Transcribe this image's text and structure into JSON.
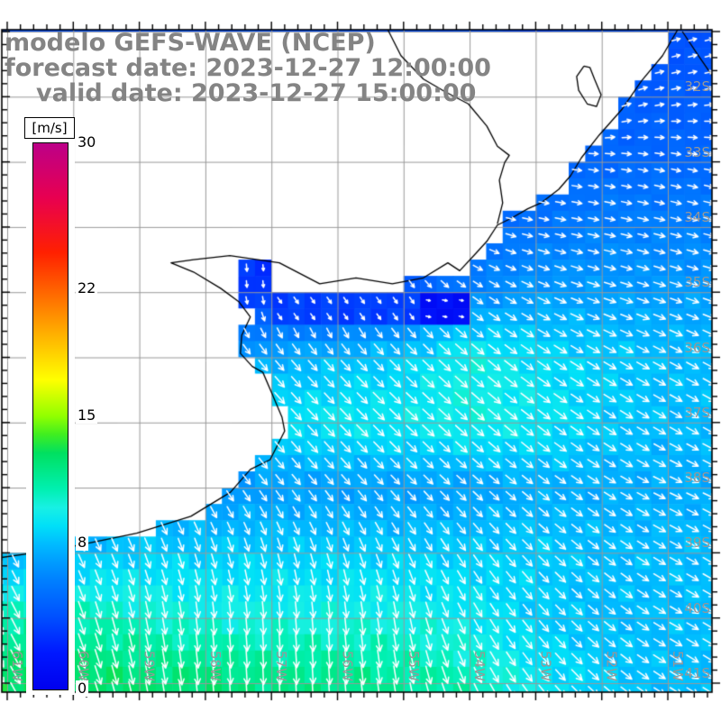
{
  "title": {
    "line1": "modelo GEFS-WAVE (NCEP)",
    "line2": "forecast date: 2023-12-27 12:00:00",
    "line3": "valid date: 2023-12-27 15:00:00"
  },
  "colorbar": {
    "unit_label": "[m/s]",
    "min": 0,
    "max": 30,
    "tick_labels": [
      "30",
      "22",
      "15",
      "8",
      "0"
    ],
    "tick_values": [
      30,
      22,
      15,
      8,
      0
    ],
    "stops": [
      [
        0,
        "#0000EE"
      ],
      [
        2,
        "#0018FF"
      ],
      [
        4,
        "#0050FF"
      ],
      [
        6,
        "#0080FF"
      ],
      [
        7,
        "#009CFF"
      ],
      [
        8,
        "#00BCFF"
      ],
      [
        9,
        "#00E0F8"
      ],
      [
        10,
        "#18F0E4"
      ],
      [
        11,
        "#00F0B0"
      ],
      [
        12,
        "#00E888"
      ],
      [
        13,
        "#00E060"
      ],
      [
        14,
        "#40EE20"
      ],
      [
        15,
        "#90FF00"
      ],
      [
        17,
        "#FFFF00"
      ],
      [
        20,
        "#FFA000"
      ],
      [
        24,
        "#FF2000"
      ],
      [
        27,
        "#E80050"
      ],
      [
        30,
        "#BC0088"
      ]
    ]
  },
  "axes": {
    "lat_labels": [
      "32S",
      "33S",
      "34S",
      "35S",
      "36S",
      "37S",
      "38S",
      "39S",
      "40S",
      "41S"
    ],
    "lat_values": [
      32,
      33,
      34,
      35,
      36,
      37,
      38,
      39,
      40,
      41
    ],
    "lon_labels": [
      "61W",
      "60W",
      "59W",
      "58W",
      "57W",
      "56W",
      "55W",
      "54W",
      "53W",
      "52W",
      "51W"
    ],
    "lon_values": [
      61,
      60,
      59,
      58,
      57,
      56,
      55,
      54,
      53,
      52,
      51
    ],
    "lat_range": [
      31,
      41
    ],
    "lon_range": [
      61,
      51
    ],
    "minor_ticks_per_degree": 5,
    "grid_color": "#999999",
    "frame_color": "#000000",
    "label_color": "#979797"
  },
  "wind_field": {
    "type": "vector-grid",
    "units": "m/s",
    "cell_deg": 0.25,
    "lat_nodes": [
      31,
      32,
      33,
      34,
      35,
      36,
      37,
      38,
      39,
      40,
      41
    ],
    "lon_nodes": [
      61,
      60,
      59,
      58,
      57,
      56,
      55,
      54,
      53,
      52,
      51
    ],
    "speed": [
      [
        4,
        4,
        4,
        4,
        4,
        4,
        4,
        4,
        3.5,
        4,
        4
      ],
      [
        4.5,
        4.5,
        4.5,
        4.5,
        4.5,
        4.5,
        4.5,
        4.5,
        4,
        4.5,
        4.5
      ],
      [
        5,
        5,
        5,
        5,
        5,
        5,
        5,
        4.5,
        4.5,
        5,
        5
      ],
      [
        5,
        5,
        5,
        5,
        5,
        5,
        4.5,
        5,
        5.5,
        6,
        6
      ],
      [
        5,
        5,
        4,
        3,
        3,
        3,
        4,
        6,
        7,
        7,
        7
      ],
      [
        6,
        6,
        6.5,
        7,
        7.5,
        8,
        8.5,
        10,
        9,
        8.5,
        8
      ],
      [
        7.5,
        7.5,
        8,
        8.5,
        9,
        9.5,
        9.5,
        10,
        9.5,
        8.5,
        8
      ],
      [
        6.5,
        6.5,
        6.5,
        6.5,
        7,
        7,
        7,
        7,
        7.5,
        7.5,
        7.5
      ],
      [
        7.5,
        8,
        8.5,
        8.5,
        8.5,
        8.5,
        8.5,
        8.5,
        8.5,
        8,
        8
      ],
      [
        11,
        11,
        10.5,
        10,
        10,
        10,
        10,
        9.5,
        8.5,
        8,
        8
      ],
      [
        13,
        13,
        12.5,
        12.5,
        12,
        12,
        11.5,
        11,
        9.5,
        8.5,
        8
      ]
    ],
    "dir_deg_screen": [
      [
        0,
        0,
        0,
        0,
        0,
        0,
        0,
        -10,
        -25,
        -25,
        -15
      ],
      [
        0,
        0,
        0,
        0,
        0,
        0,
        0,
        0,
        -15,
        -30,
        -10
      ],
      [
        10,
        10,
        10,
        10,
        10,
        10,
        10,
        12,
        5,
        8,
        12
      ],
      [
        20,
        20,
        20,
        20,
        20,
        25,
        30,
        20,
        12,
        12,
        15
      ],
      [
        60,
        60,
        70,
        80,
        85,
        85,
        60,
        35,
        25,
        18,
        18
      ],
      [
        45,
        45,
        45,
        48,
        50,
        48,
        45,
        42,
        35,
        30,
        28
      ],
      [
        50,
        50,
        50,
        50,
        48,
        46,
        44,
        42,
        38,
        34,
        30
      ],
      [
        60,
        60,
        58,
        55,
        52,
        50,
        46,
        42,
        38,
        32,
        25
      ],
      [
        62,
        65,
        68,
        72,
        75,
        72,
        65,
        55,
        45,
        38,
        30
      ],
      [
        62,
        70,
        78,
        84,
        86,
        85,
        80,
        62,
        50,
        40,
        30
      ],
      [
        60,
        68,
        78,
        85,
        88,
        86,
        80,
        66,
        52,
        42,
        32
      ]
    ],
    "estuary_patches": [
      {
        "name": "rio-upper",
        "lon": [
          57.62,
          57.12
        ],
        "lat": [
          34.45,
          34.98
        ],
        "speed": 3,
        "dir": 85
      },
      {
        "name": "rio-row",
        "lon": [
          57.05,
          54.85
        ],
        "lat": [
          35.06,
          35.4
        ],
        "speed": 3.4,
        "dir": 55
      },
      {
        "name": "rio-mouth-calm",
        "lon": [
          54.85,
          54.05
        ],
        "lat": [
          34.98,
          35.4
        ],
        "speed": 1.2,
        "dir": 10
      }
    ],
    "arrow_color": "#ffffff"
  },
  "geography": {
    "land_color": "#ffffff",
    "coast_color": "#000000",
    "mask_polygon": [
      [
        61.15,
        30.9
      ],
      [
        50.81,
        30.9
      ],
      [
        51.08,
        31.37
      ],
      [
        51.4,
        31.76
      ],
      [
        51.7,
        32.2
      ],
      [
        52.04,
        32.59
      ],
      [
        52.31,
        32.94
      ],
      [
        52.47,
        33.21
      ],
      [
        52.65,
        33.42
      ],
      [
        52.92,
        33.63
      ],
      [
        53.12,
        33.72
      ],
      [
        53.36,
        33.86
      ],
      [
        53.58,
        33.97
      ],
      [
        53.52,
        34.08
      ],
      [
        53.74,
        34.29
      ],
      [
        53.92,
        34.49
      ],
      [
        54.15,
        34.74
      ],
      [
        54.33,
        34.62
      ],
      [
        54.7,
        34.85
      ],
      [
        54.9,
        34.8
      ],
      [
        55.0,
        35.06
      ],
      [
        57.55,
        35.06
      ],
      [
        57.4,
        35.2
      ],
      [
        57.32,
        35.38
      ],
      [
        57.45,
        35.66
      ],
      [
        57.47,
        35.94
      ],
      [
        57.29,
        36.14
      ],
      [
        57.13,
        36.23
      ],
      [
        56.99,
        36.56
      ],
      [
        56.84,
        36.92
      ],
      [
        56.8,
        37.13
      ],
      [
        57.02,
        37.57
      ],
      [
        57.32,
        37.72
      ],
      [
        57.62,
        38.07
      ],
      [
        58.22,
        38.44
      ],
      [
        59.04,
        38.7
      ],
      [
        60.0,
        38.9
      ],
      [
        60.73,
        39.02
      ],
      [
        61.15,
        39.08
      ]
    ],
    "coast_paths": [
      [
        [
          50.81,
          30.9
        ],
        [
          51.08,
          31.37
        ],
        [
          51.4,
          31.76
        ],
        [
          51.7,
          32.2
        ],
        [
          52.04,
          32.59
        ],
        [
          52.31,
          32.94
        ],
        [
          52.47,
          33.21
        ],
        [
          52.65,
          33.42
        ],
        [
          52.92,
          33.63
        ],
        [
          53.12,
          33.72
        ],
        [
          53.36,
          33.86
        ],
        [
          53.58,
          33.97
        ],
        [
          53.74,
          34.22
        ],
        [
          53.92,
          34.42
        ],
        [
          54.15,
          34.67
        ],
        [
          54.33,
          34.55
        ],
        [
          54.7,
          34.78
        ],
        [
          55.17,
          34.87
        ],
        [
          55.72,
          34.78
        ],
        [
          56.27,
          34.87
        ],
        [
          56.88,
          34.55
        ],
        [
          57.63,
          34.44
        ],
        [
          58.18,
          34.5
        ],
        [
          58.52,
          34.55
        ],
        [
          58.18,
          34.69
        ],
        [
          57.77,
          34.94
        ],
        [
          57.49,
          35.15
        ],
        [
          57.32,
          35.38
        ],
        [
          57.45,
          35.66
        ],
        [
          57.47,
          35.94
        ],
        [
          57.29,
          36.14
        ],
        [
          57.13,
          36.23
        ],
        [
          56.99,
          36.56
        ],
        [
          56.84,
          36.92
        ],
        [
          56.8,
          37.13
        ],
        [
          57.02,
          37.57
        ],
        [
          57.32,
          37.72
        ],
        [
          57.62,
          38.07
        ],
        [
          58.22,
          38.44
        ],
        [
          59.04,
          38.7
        ],
        [
          60.0,
          38.9
        ],
        [
          60.73,
          39.02
        ],
        [
          61.15,
          39.08
        ]
      ],
      [
        [
          55.24,
          30.97
        ],
        [
          55.04,
          31.37
        ],
        [
          54.7,
          31.73
        ],
        [
          54.36,
          31.93
        ],
        [
          54.02,
          32.11
        ],
        [
          53.74,
          32.45
        ],
        [
          53.58,
          32.76
        ],
        [
          53.4,
          32.9
        ],
        [
          53.47,
          33.01
        ],
        [
          53.55,
          33.28
        ],
        [
          53.5,
          33.63
        ],
        [
          53.58,
          33.95
        ]
      ],
      [
        [
          52.27,
          31.53
        ],
        [
          52.38,
          31.69
        ],
        [
          52.35,
          31.9
        ],
        [
          52.22,
          32.11
        ],
        [
          52.08,
          32.15
        ],
        [
          52.01,
          31.97
        ],
        [
          52.11,
          31.73
        ],
        [
          52.18,
          31.55
        ],
        [
          52.27,
          31.53
        ]
      ],
      [
        [
          50.78,
          31.0
        ],
        [
          50.55,
          31.35
        ],
        [
          50.3,
          31.72
        ]
      ]
    ]
  }
}
